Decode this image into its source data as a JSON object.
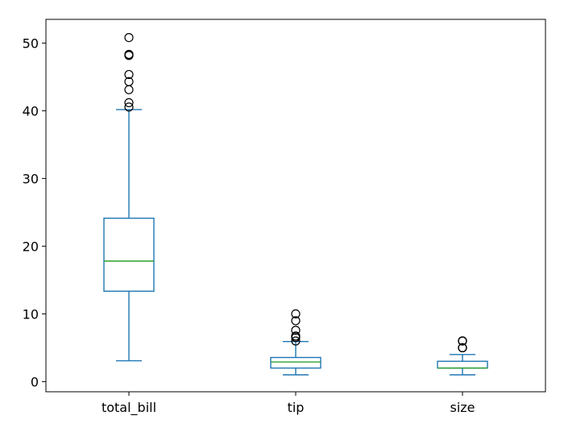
{
  "chart_data": {
    "type": "boxplot",
    "title": "",
    "xlabel": "",
    "ylabel": "",
    "ylim": [
      -1.5,
      53.5
    ],
    "yticks": [
      0,
      10,
      20,
      30,
      40,
      50
    ],
    "ytick_labels": [
      "0",
      "10",
      "20",
      "30",
      "40",
      "50"
    ],
    "grid": false,
    "categories": [
      "total_bill",
      "tip",
      "size"
    ],
    "boxes": [
      {
        "name": "total_bill",
        "whisker_low": 3.07,
        "q1": 13.35,
        "median": 17.8,
        "q3": 24.13,
        "whisker_high": 40.17,
        "outliers": [
          40.55,
          41.19,
          43.11,
          44.3,
          45.35,
          48.17,
          48.27,
          48.33,
          50.81
        ]
      },
      {
        "name": "tip",
        "whisker_low": 1.0,
        "q1": 2.0,
        "median": 2.9,
        "q3": 3.56,
        "whisker_high": 5.92,
        "outliers": [
          6.0,
          6.5,
          6.7,
          6.73,
          7.58,
          9.0,
          10.0
        ]
      },
      {
        "name": "size",
        "whisker_low": 1,
        "q1": 2,
        "median": 2,
        "q3": 3,
        "whisker_high": 4,
        "outliers": [
          5,
          5,
          5,
          6,
          6,
          6
        ]
      }
    ],
    "colors": {
      "box": "#1f77b4",
      "median": "#2ca02c",
      "outlier": "#000000",
      "axes": "#000000"
    }
  }
}
